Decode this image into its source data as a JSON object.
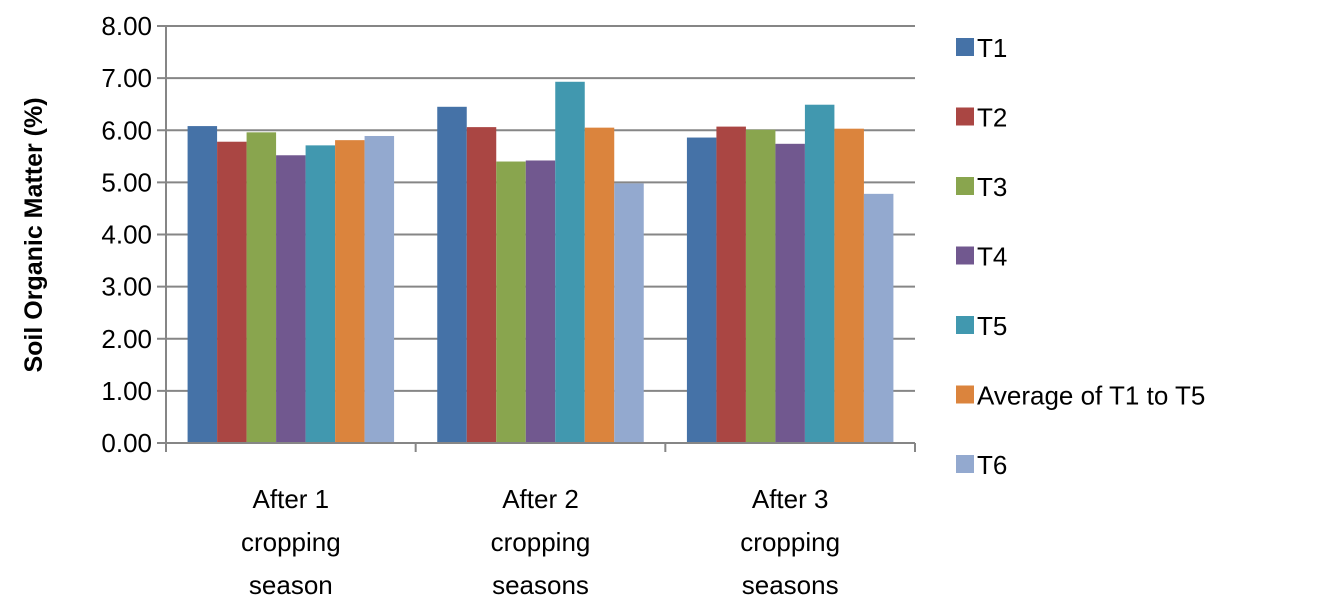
{
  "chart_data": {
    "type": "bar",
    "title": "",
    "xlabel": "",
    "ylabel": "Soil Organic Matter (%)",
    "ylim": [
      0,
      8
    ],
    "y_ticks": [
      "0.00",
      "1.00",
      "2.00",
      "3.00",
      "4.00",
      "5.00",
      "6.00",
      "7.00",
      "8.00"
    ],
    "grid": true,
    "legend_position": "right",
    "categories": [
      [
        "After 1",
        "cropping",
        "season"
      ],
      [
        "After 2",
        "cropping",
        "seasons"
      ],
      [
        "After 3",
        "cropping",
        "seasons"
      ]
    ],
    "series": [
      {
        "name": "T1",
        "color": "#4572A7",
        "values": [
          6.08,
          6.45,
          5.86
        ]
      },
      {
        "name": "T2",
        "color": "#AA4643",
        "values": [
          5.78,
          6.06,
          6.07
        ]
      },
      {
        "name": "T3",
        "color": "#89A54E",
        "values": [
          5.96,
          5.4,
          6.01
        ]
      },
      {
        "name": "T4",
        "color": "#71588F",
        "values": [
          5.52,
          5.42,
          5.74
        ]
      },
      {
        "name": "T5",
        "color": "#4198AF",
        "values": [
          5.71,
          6.93,
          6.49
        ]
      },
      {
        "name": "Average of T1 to T5",
        "color": "#DB843D",
        "values": [
          5.81,
          6.05,
          6.03
        ]
      },
      {
        "name": "T6",
        "color": "#93A9CF",
        "values": [
          5.89,
          4.98,
          4.78
        ]
      }
    ]
  }
}
